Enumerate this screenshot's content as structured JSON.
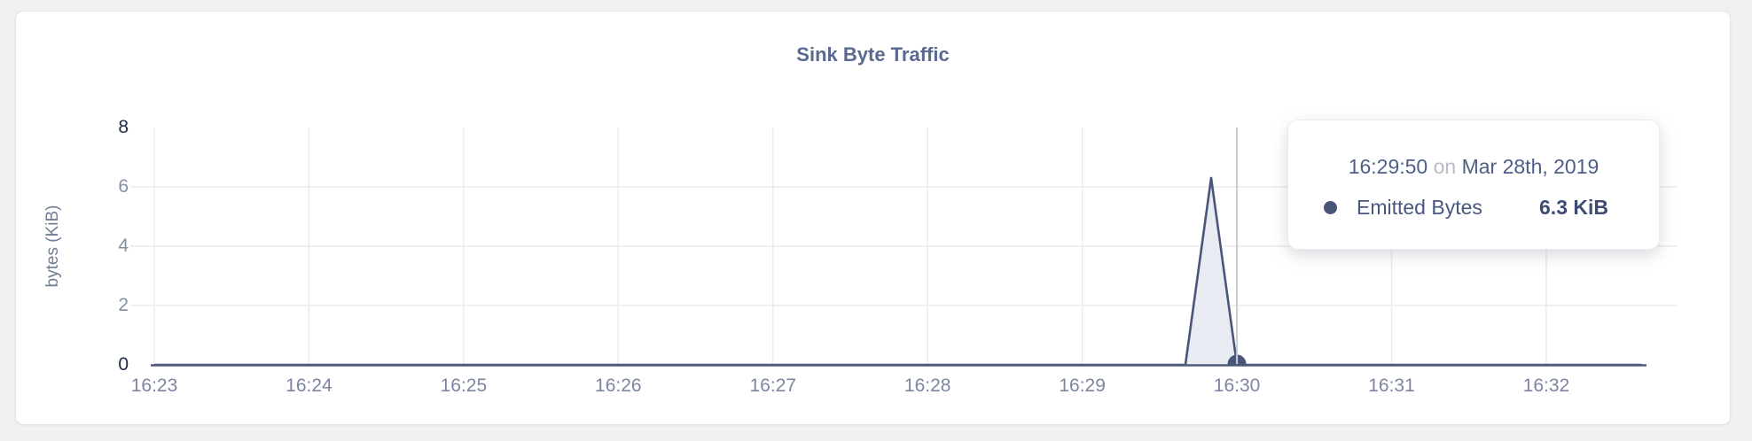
{
  "page": {
    "background": "#f1f1f2"
  },
  "card": {
    "background": "#ffffff"
  },
  "chart_data": {
    "type": "area",
    "title": "Sink Byte Traffic",
    "ylabel": "bytes (KiB)",
    "xlabel": "",
    "x_tick_labels": [
      "16:23",
      "16:24",
      "16:25",
      "16:26",
      "16:27",
      "16:28",
      "16:29",
      "16:30",
      "16:31",
      "16:32"
    ],
    "x_tick_seconds": [
      0,
      60,
      120,
      180,
      240,
      300,
      360,
      420,
      480,
      540
    ],
    "y_ticks": [
      0,
      2,
      4,
      6,
      8
    ],
    "ylim": [
      0,
      8
    ],
    "xlim_seconds": [
      0,
      591
    ],
    "grid": true,
    "legend_position": "none",
    "series": [
      {
        "name": "Emitted Bytes",
        "t_seconds": [
          0,
          400,
          410,
          420,
          577
        ],
        "values_kib": [
          0,
          0,
          6.3,
          0,
          0
        ]
      }
    ],
    "highlight": {
      "t_seconds": 420,
      "value_kib": 0,
      "crosshair": true
    },
    "colors": {
      "grid": "#ebebee",
      "axis_line": "#4f5b78",
      "line": "#4a5679",
      "fill": "#e9ebf3",
      "crosshair": "#c9cbd2",
      "dot": "#4a5679",
      "x_tick": "#7c86a0",
      "y_tick": "#858fa5",
      "y_tick_extreme": "#1e2947",
      "title": "#5a6990",
      "ylabel": "#717c96"
    }
  },
  "tooltip": {
    "time": "16:29:50",
    "connector": "on",
    "date": "Mar 28th, 2019",
    "series": {
      "marker_color": "#4a5679",
      "label": "Emitted Bytes",
      "value": "6.3 KiB"
    }
  }
}
